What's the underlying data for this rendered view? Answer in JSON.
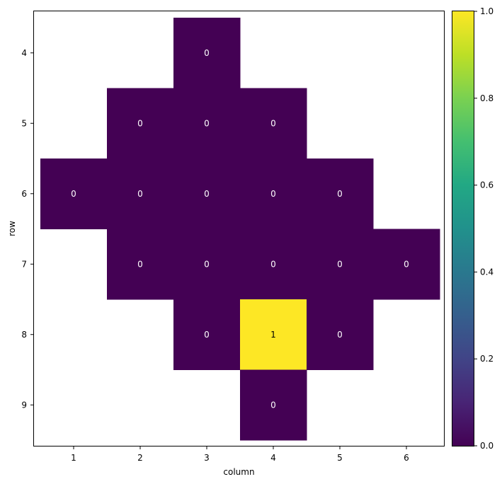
{
  "chart_data": {
    "type": "heatmap",
    "title": "",
    "xlabel": "column",
    "ylabel": "row",
    "x_ticks": [
      "1",
      "2",
      "3",
      "4",
      "5",
      "6"
    ],
    "y_ticks": [
      "4",
      "5",
      "6",
      "7",
      "8",
      "9"
    ],
    "x_range": [
      0.5,
      6.5
    ],
    "y_range": [
      3.5,
      9.5
    ],
    "cells": [
      {
        "row": 4,
        "col": 3,
        "value": 0,
        "label": "0"
      },
      {
        "row": 5,
        "col": 2,
        "value": 0,
        "label": "0"
      },
      {
        "row": 5,
        "col": 3,
        "value": 0,
        "label": "0"
      },
      {
        "row": 5,
        "col": 4,
        "value": 0,
        "label": "0"
      },
      {
        "row": 6,
        "col": 1,
        "value": 0,
        "label": "0"
      },
      {
        "row": 6,
        "col": 2,
        "value": 0,
        "label": "0"
      },
      {
        "row": 6,
        "col": 3,
        "value": 0,
        "label": "0"
      },
      {
        "row": 6,
        "col": 4,
        "value": 0,
        "label": "0"
      },
      {
        "row": 6,
        "col": 5,
        "value": 0,
        "label": "0"
      },
      {
        "row": 7,
        "col": 2,
        "value": 0,
        "label": "0"
      },
      {
        "row": 7,
        "col": 3,
        "value": 0,
        "label": "0"
      },
      {
        "row": 7,
        "col": 4,
        "value": 0,
        "label": "0"
      },
      {
        "row": 7,
        "col": 5,
        "value": 0,
        "label": "0"
      },
      {
        "row": 7,
        "col": 6,
        "value": 0,
        "label": "0"
      },
      {
        "row": 8,
        "col": 3,
        "value": 0,
        "label": "0"
      },
      {
        "row": 8,
        "col": 4,
        "value": 1,
        "label": "1"
      },
      {
        "row": 8,
        "col": 5,
        "value": 0,
        "label": "0"
      },
      {
        "row": 9,
        "col": 4,
        "value": 0,
        "label": "0"
      }
    ],
    "colorbar": {
      "colormap": "viridis",
      "range": [
        0,
        1
      ],
      "ticks": [
        "0.0",
        "0.2",
        "0.4",
        "0.6",
        "0.8",
        "1.0"
      ],
      "low_color": "#440154",
      "high_color": "#fde725"
    },
    "grid": false
  }
}
